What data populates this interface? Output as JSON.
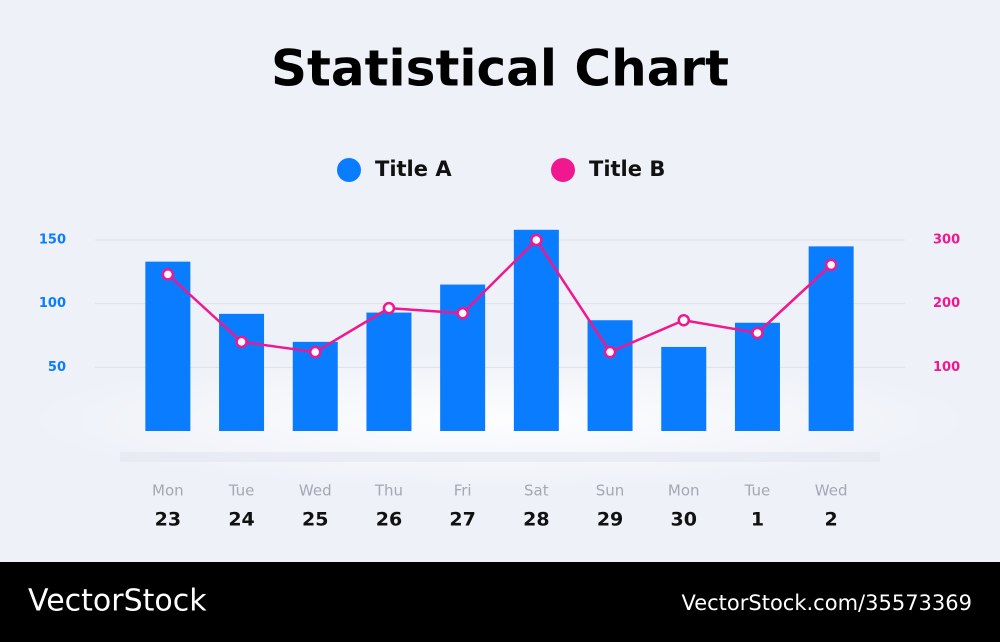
{
  "chart_data": {
    "type": "bar",
    "title": "Statistical Chart",
    "categories": [
      "Mon",
      "Tue",
      "Wed",
      "Thu",
      "Fri",
      "Sat",
      "Sun",
      "Mon",
      "Tue",
      "Wed"
    ],
    "dates": [
      "23",
      "24",
      "25",
      "26",
      "27",
      "28",
      "29",
      "30",
      "1",
      "2"
    ],
    "series": [
      {
        "name": "Title A",
        "type": "bar",
        "color": "#0a7cff",
        "values": [
          133,
          92,
          70,
          93,
          115,
          158,
          87,
          66,
          85,
          145
        ]
      },
      {
        "name": "Title B",
        "type": "line",
        "axis": "y2",
        "color": "#f0178f",
        "values": [
          246,
          140,
          124,
          193,
          185,
          300,
          124,
          174,
          154,
          261
        ]
      }
    ],
    "ylim": [
      0,
      150
    ],
    "yticks": [
      50,
      100,
      150
    ],
    "y2lim": [
      0,
      300
    ],
    "y2ticks": [
      100,
      200,
      300
    ],
    "grid": true,
    "legend": "top"
  },
  "footer": {
    "brand": "VectorStock",
    "url": "VectorStock.com/35573369"
  }
}
